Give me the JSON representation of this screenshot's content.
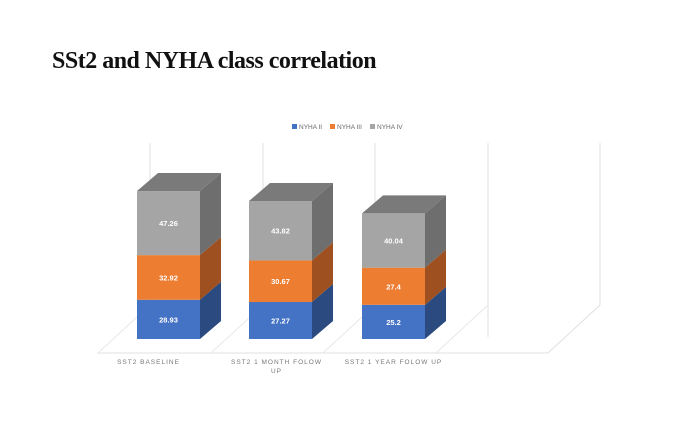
{
  "chart_data": {
    "type": "bar",
    "stacked": true,
    "style": "3d",
    "title": "SSt2 and NYHA class correlation",
    "categories": [
      "SST2 BASELINE",
      "SST2 1 MONTH FOLOW UP",
      "SST2 1 YEAR FOLOW UP"
    ],
    "category_lines": [
      [
        "SST2 BASELINE"
      ],
      [
        "SST2 1 MONTH FOLOW",
        "UP"
      ],
      [
        "SST2 1 YEAR FOLOW UP"
      ]
    ],
    "series": [
      {
        "name": "NYHA II",
        "values": [
          28.93,
          27.27,
          25.2
        ],
        "labels": [
          "28.93",
          "27.27",
          "25.2"
        ],
        "color": "#4472C4",
        "side": "#2A4A80"
      },
      {
        "name": "NYHA III",
        "values": [
          32.92,
          30.67,
          27.4
        ],
        "labels": [
          "32.92",
          "30.67",
          "27.4"
        ],
        "color": "#ED7D31",
        "side": "#9E5020"
      },
      {
        "name": "NYHA IV",
        "values": [
          47.26,
          43.82,
          40.04
        ],
        "labels": [
          "47.26",
          "43.82",
          "40.04"
        ],
        "color": "#A5A5A5",
        "side": "#6E6E6E"
      }
    ],
    "legend_position": "top",
    "xlabel": "",
    "ylabel": "",
    "grid": true
  }
}
